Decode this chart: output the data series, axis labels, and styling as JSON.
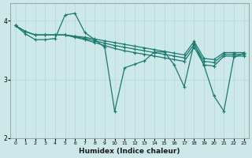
{
  "xlabel": "Humidex (Indice chaleur)",
  "bg_color": "#cce8e8",
  "grid_color": "#b8d8d8",
  "line_color": "#1a7a6e",
  "xlim": [
    -0.5,
    23.5
  ],
  "ylim": [
    2,
    4.3
  ],
  "yticks": [
    2,
    3,
    4
  ],
  "xticks": [
    0,
    1,
    2,
    3,
    4,
    5,
    6,
    7,
    8,
    9,
    10,
    11,
    12,
    13,
    14,
    15,
    16,
    17,
    18,
    19,
    20,
    21,
    22,
    23
  ],
  "series": [
    {
      "x": [
        0,
        1,
        2,
        3,
        4,
        5,
        6,
        7,
        8,
        9,
        10,
        11,
        12,
        13,
        14,
        15,
        16,
        17,
        18,
        19,
        20,
        21,
        22,
        23
      ],
      "y": [
        3.92,
        3.82,
        3.76,
        3.76,
        3.76,
        3.76,
        3.74,
        3.72,
        3.69,
        3.66,
        3.63,
        3.6,
        3.57,
        3.54,
        3.51,
        3.48,
        3.45,
        3.42,
        3.65,
        3.36,
        3.34,
        3.46,
        3.46,
        3.46
      ],
      "marker": false
    },
    {
      "x": [
        0,
        1,
        2,
        3,
        4,
        5,
        6,
        7,
        8,
        9,
        10,
        11,
        12,
        13,
        14,
        15,
        16,
        17,
        18,
        19,
        20,
        21,
        22,
        23
      ],
      "y": [
        3.92,
        3.82,
        3.76,
        3.76,
        3.76,
        3.76,
        3.73,
        3.7,
        3.66,
        3.62,
        3.58,
        3.55,
        3.52,
        3.49,
        3.46,
        3.43,
        3.4,
        3.37,
        3.6,
        3.31,
        3.29,
        3.43,
        3.43,
        3.43
      ],
      "marker": false
    },
    {
      "x": [
        0,
        1,
        2,
        3,
        4,
        5,
        6,
        7,
        8,
        9,
        10,
        11,
        12,
        13,
        14,
        15,
        16,
        17,
        18,
        19,
        20,
        21,
        22,
        23
      ],
      "y": [
        3.92,
        3.82,
        3.76,
        3.76,
        3.76,
        3.76,
        3.72,
        3.68,
        3.63,
        3.58,
        3.53,
        3.49,
        3.46,
        3.43,
        3.4,
        3.37,
        3.34,
        3.31,
        3.55,
        3.25,
        3.23,
        3.4,
        3.4,
        3.4
      ],
      "marker": false
    },
    {
      "x": [
        0,
        1,
        2,
        3,
        4,
        5,
        6,
        7,
        8,
        9,
        10,
        11,
        12,
        13,
        14,
        15,
        16,
        17,
        18,
        19,
        20,
        21,
        22,
        23
      ],
      "y": [
        3.92,
        3.78,
        3.68,
        3.68,
        3.7,
        4.1,
        4.13,
        3.8,
        3.68,
        3.55,
        2.46,
        3.2,
        3.26,
        3.32,
        3.47,
        3.47,
        3.25,
        2.88,
        3.62,
        3.24,
        2.72,
        2.46,
        3.38,
        3.45
      ],
      "marker": true
    }
  ]
}
